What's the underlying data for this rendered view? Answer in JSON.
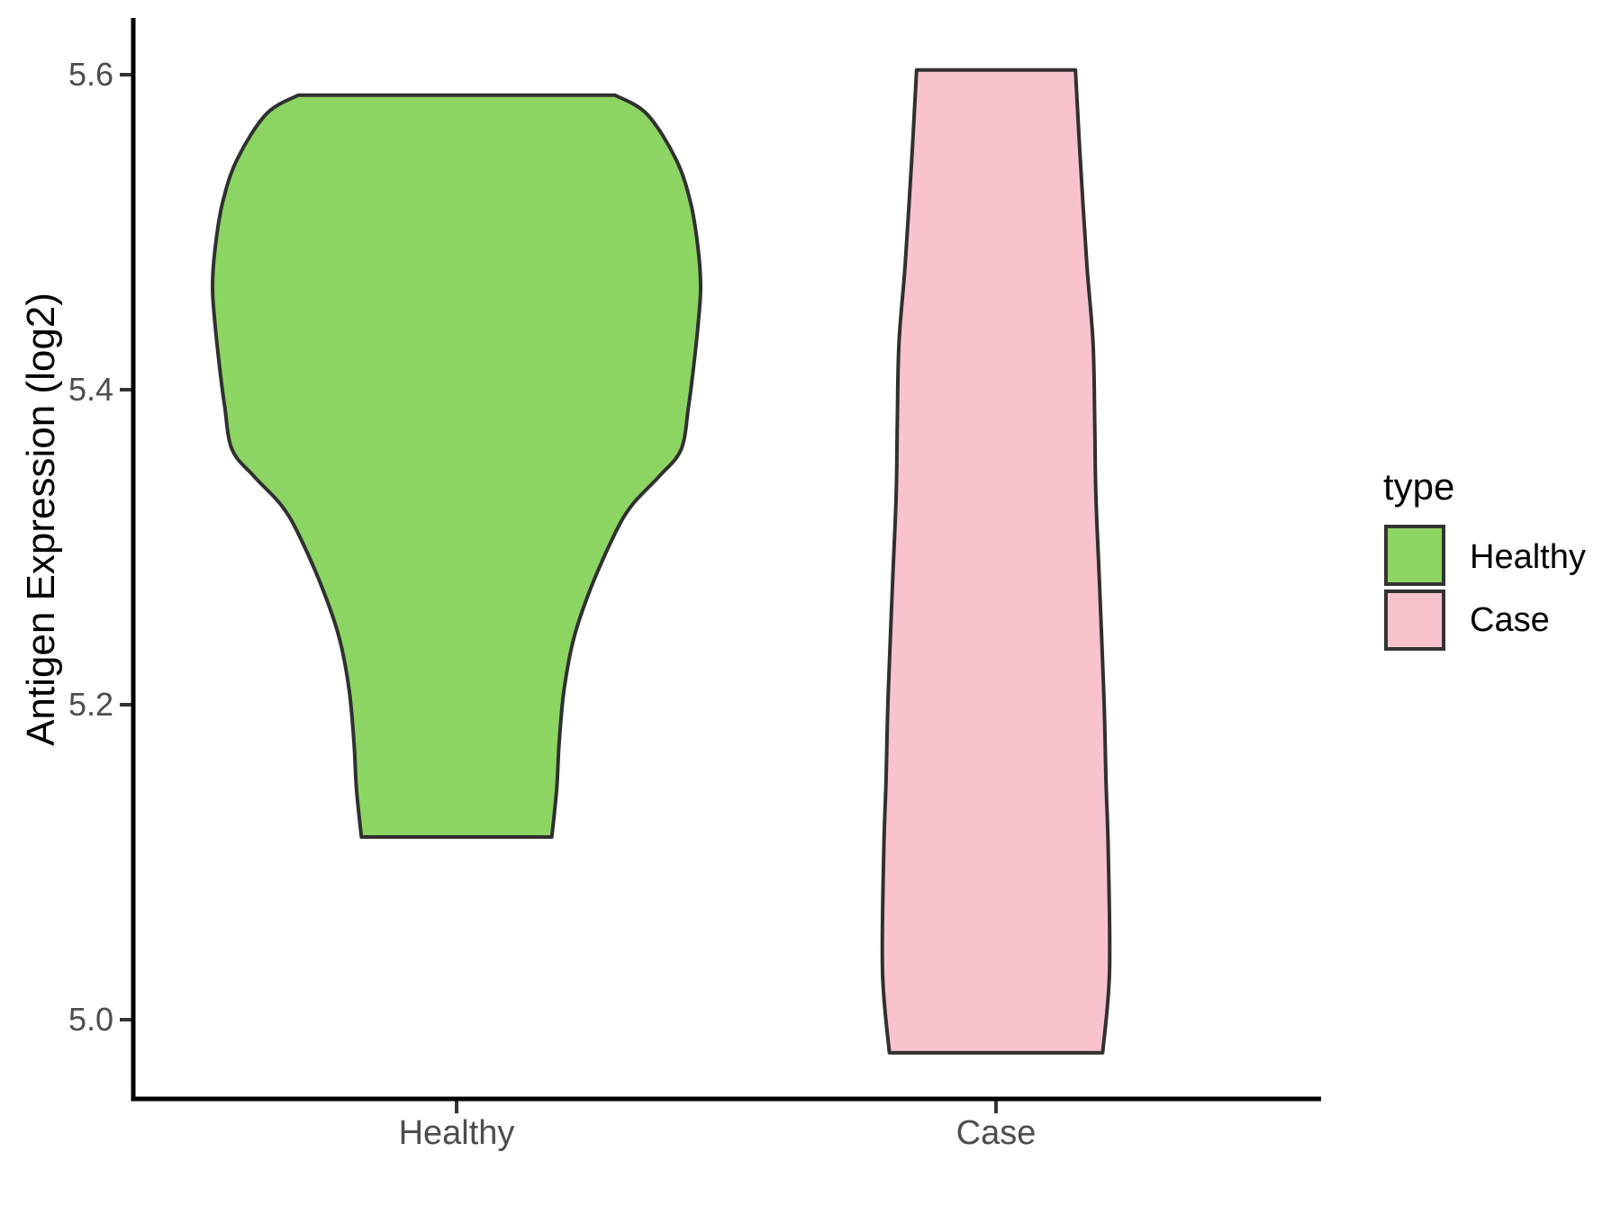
{
  "chart_data": {
    "type": "violin",
    "title": "",
    "xlabel": "",
    "ylabel": "Antigen Expression (log2)",
    "categories": [
      "Healthy",
      "Case"
    ],
    "y_ticks": [
      5.6,
      5.4,
      5.2,
      5.0
    ],
    "y_tick_labels": [
      "5.6",
      "5.4",
      "5.2",
      "5.0"
    ],
    "ylim": [
      4.95,
      5.64
    ],
    "grid": "off",
    "legend_position": "right",
    "outline_color": "#303030",
    "axis_color": "#000000",
    "tick_color": "#333333",
    "tick_label_color": "#4d4d4d",
    "series": [
      {
        "name": "Healthy",
        "fill": "#8CD563",
        "min_value": 5.12,
        "max_value": 5.59,
        "profile": [
          [
            5.587,
            0.65
          ],
          [
            5.575,
            0.78
          ],
          [
            5.546,
            0.9
          ],
          [
            5.518,
            0.96
          ],
          [
            5.489,
            0.99
          ],
          [
            5.465,
            1.0
          ],
          [
            5.442,
            0.99
          ],
          [
            5.413,
            0.97
          ],
          [
            5.389,
            0.95
          ],
          [
            5.362,
            0.92
          ],
          [
            5.345,
            0.83
          ],
          [
            5.327,
            0.72
          ],
          [
            5.309,
            0.65
          ],
          [
            5.274,
            0.55
          ],
          [
            5.242,
            0.48
          ],
          [
            5.209,
            0.44
          ],
          [
            5.175,
            0.42
          ],
          [
            5.146,
            0.41
          ],
          [
            5.116,
            0.39
          ]
        ]
      },
      {
        "name": "Case",
        "fill": "#F8C3CD",
        "min_value": 4.98,
        "max_value": 5.6,
        "profile": [
          [
            5.603,
            0.7
          ],
          [
            5.55,
            0.74
          ],
          [
            5.48,
            0.8
          ],
          [
            5.43,
            0.855
          ],
          [
            5.38,
            0.87
          ],
          [
            5.333,
            0.88
          ],
          [
            5.28,
            0.91
          ],
          [
            5.207,
            0.95
          ],
          [
            5.15,
            0.97
          ],
          [
            5.105,
            0.99
          ],
          [
            5.03,
            1.0
          ],
          [
            4.979,
            0.94
          ]
        ]
      }
    ],
    "legend": {
      "title": "type",
      "entries": [
        {
          "label": "Healthy",
          "color": "#8CD563"
        },
        {
          "label": "Case",
          "color": "#F8C3CD"
        }
      ]
    }
  }
}
